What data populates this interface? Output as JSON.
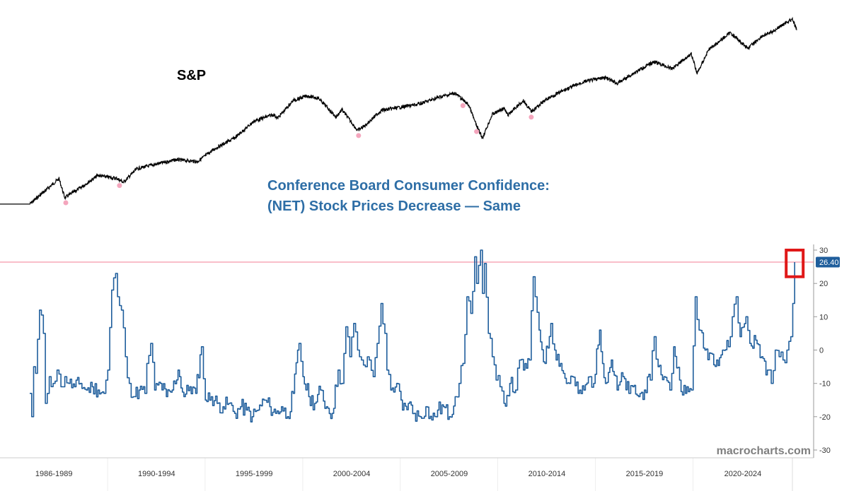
{
  "colors": {
    "sp_line": "#000000",
    "confidence_line": "#1f5e9c",
    "title": "#2e6ea6",
    "marker": "#f4a6bd",
    "reference_line": "#f7a8b8",
    "highlight_box": "#e01818",
    "badge": "#1f5e9c"
  },
  "chart_data": [
    {
      "type": "line",
      "label": "S&P",
      "log_scale": true,
      "series": [
        {
          "name": "S&P",
          "points": [
            [
              1986.0,
              200
            ],
            [
              1987.5,
              320
            ],
            [
              1987.8,
              225
            ],
            [
              1988.5,
              265
            ],
            [
              1989.5,
              340
            ],
            [
              1990.5,
              320
            ],
            [
              1990.8,
              300
            ],
            [
              1991.5,
              385
            ],
            [
              1992.5,
              420
            ],
            [
              1993.5,
              455
            ],
            [
              1994.6,
              440
            ],
            [
              1995.5,
              560
            ],
            [
              1996.5,
              680
            ],
            [
              1997.5,
              930
            ],
            [
              1998.5,
              1050
            ],
            [
              1998.7,
              980
            ],
            [
              1999.5,
              1360
            ],
            [
              2000.2,
              1480
            ],
            [
              2000.8,
              1420
            ],
            [
              2001.7,
              1000
            ],
            [
              2002.0,
              1150
            ],
            [
              2002.8,
              780
            ],
            [
              2003.2,
              860
            ],
            [
              2004.0,
              1130
            ],
            [
              2005.0,
              1200
            ],
            [
              2006.0,
              1280
            ],
            [
              2007.0,
              1450
            ],
            [
              2007.8,
              1560
            ],
            [
              2008.5,
              1250
            ],
            [
              2008.9,
              850
            ],
            [
              2009.2,
              680
            ],
            [
              2009.7,
              1050
            ],
            [
              2010.3,
              1180
            ],
            [
              2010.5,
              1040
            ],
            [
              2011.3,
              1360
            ],
            [
              2011.7,
              1110
            ],
            [
              2012.5,
              1400
            ],
            [
              2013.5,
              1680
            ],
            [
              2014.5,
              1950
            ],
            [
              2015.5,
              2080
            ],
            [
              2016.1,
              1860
            ],
            [
              2017.0,
              2280
            ],
            [
              2018.0,
              2790
            ],
            [
              2018.9,
              2450
            ],
            [
              2019.9,
              3230
            ],
            [
              2020.2,
              2240
            ],
            [
              2020.8,
              3500
            ],
            [
              2021.9,
              4770
            ],
            [
              2022.8,
              3580
            ],
            [
              2023.5,
              4450
            ],
            [
              2024.0,
              4800
            ],
            [
              2024.9,
              5950
            ],
            [
              2025.1,
              6050
            ],
            [
              2025.3,
              5000
            ]
          ]
        }
      ],
      "markers": [
        1987.85,
        1990.6,
        2002.85,
        2008.2,
        2008.9,
        2011.7
      ]
    },
    {
      "type": "line",
      "title_lines": [
        "Conference Board Consumer Confidence:",
        "(NET) Stock Prices Decrease — Same"
      ],
      "y_ticks": [
        30,
        20,
        10,
        0,
        -10,
        -20,
        -30
      ],
      "ylim": [
        -30,
        30
      ],
      "x_tick_labels": [
        "1986-1989",
        "1990-1994",
        "1995-1999",
        "2000-2004",
        "2005-2009",
        "2010-2014",
        "2015-2019",
        "2020-2024"
      ],
      "x_bands": [
        [
          1986,
          1990
        ],
        [
          1990,
          1995
        ],
        [
          1995,
          2000
        ],
        [
          2000,
          2005
        ],
        [
          2005,
          2010
        ],
        [
          2010,
          2015
        ],
        [
          2015,
          2020
        ],
        [
          2020,
          2025
        ]
      ],
      "reference_value": 26.4,
      "last_value_label": "26.40",
      "series": [
        {
          "name": "Conference Board Consumer Confidence: (NET) Stock Prices Decrease — Same",
          "points": [
            [
              1986.0,
              -13
            ],
            [
              1986.1,
              -20
            ],
            [
              1986.2,
              -5
            ],
            [
              1986.3,
              -7
            ],
            [
              1986.5,
              12
            ],
            [
              1986.7,
              5
            ],
            [
              1986.8,
              -16
            ],
            [
              1987.0,
              -8
            ],
            [
              1987.2,
              -10
            ],
            [
              1987.4,
              -6
            ],
            [
              1987.6,
              -11
            ],
            [
              1987.8,
              -8
            ],
            [
              1988.0,
              -10
            ],
            [
              1988.3,
              -11
            ],
            [
              1988.6,
              -10
            ],
            [
              1988.9,
              -12
            ],
            [
              1989.2,
              -11
            ],
            [
              1989.5,
              -12
            ],
            [
              1989.8,
              -13
            ],
            [
              1990.0,
              -6
            ],
            [
              1990.2,
              18
            ],
            [
              1990.4,
              23
            ],
            [
              1990.5,
              16
            ],
            [
              1990.7,
              12
            ],
            [
              1990.9,
              -2
            ],
            [
              1991.1,
              -10
            ],
            [
              1991.3,
              -14
            ],
            [
              1991.6,
              -12
            ],
            [
              1991.9,
              -13
            ],
            [
              1992.0,
              -4
            ],
            [
              1992.2,
              2
            ],
            [
              1992.4,
              -12
            ],
            [
              1992.7,
              -10
            ],
            [
              1993.0,
              -14
            ],
            [
              1993.3,
              -12
            ],
            [
              1993.6,
              -6
            ],
            [
              1993.9,
              -14
            ],
            [
              1994.2,
              -11
            ],
            [
              1994.5,
              -13
            ],
            [
              1994.8,
              1
            ],
            [
              1995.0,
              -15
            ],
            [
              1995.3,
              -14
            ],
            [
              1995.6,
              -16
            ],
            [
              1995.9,
              -17
            ],
            [
              1996.2,
              -16
            ],
            [
              1996.5,
              -19
            ],
            [
              1996.8,
              -17
            ],
            [
              1997.1,
              -18
            ],
            [
              1997.4,
              -20
            ],
            [
              1997.7,
              -18
            ],
            [
              1998.0,
              -15
            ],
            [
              1998.3,
              -17
            ],
            [
              1998.6,
              -19
            ],
            [
              1998.9,
              -17
            ],
            [
              1999.2,
              -20
            ],
            [
              1999.5,
              -13
            ],
            [
              1999.8,
              2
            ],
            [
              2000.0,
              -8
            ],
            [
              2000.3,
              -14
            ],
            [
              2000.6,
              -16
            ],
            [
              2000.9,
              -12
            ],
            [
              2001.2,
              -17
            ],
            [
              2001.5,
              -19
            ],
            [
              2001.8,
              -6
            ],
            [
              2002.0,
              -10
            ],
            [
              2002.2,
              7
            ],
            [
              2002.4,
              -2
            ],
            [
              2002.6,
              8
            ],
            [
              2002.8,
              0
            ],
            [
              2003.0,
              -3
            ],
            [
              2003.2,
              -5
            ],
            [
              2003.4,
              -3
            ],
            [
              2003.6,
              -8
            ],
            [
              2003.8,
              2
            ],
            [
              2004.0,
              14
            ],
            [
              2004.2,
              5
            ],
            [
              2004.3,
              -6
            ],
            [
              2004.5,
              -12
            ],
            [
              2004.8,
              -10
            ],
            [
              2005.1,
              -18
            ],
            [
              2005.4,
              -16
            ],
            [
              2005.7,
              -19
            ],
            [
              2006.0,
              -20
            ],
            [
              2006.3,
              -17
            ],
            [
              2006.6,
              -21
            ],
            [
              2006.9,
              -18
            ],
            [
              2007.2,
              -17
            ],
            [
              2007.5,
              -20
            ],
            [
              2007.8,
              -14
            ],
            [
              2008.0,
              -10
            ],
            [
              2008.2,
              -4
            ],
            [
              2008.4,
              16
            ],
            [
              2008.6,
              11
            ],
            [
              2008.8,
              28
            ],
            [
              2008.9,
              20
            ],
            [
              2009.1,
              30
            ],
            [
              2009.2,
              17
            ],
            [
              2009.3,
              26
            ],
            [
              2009.5,
              5
            ],
            [
              2009.7,
              -2
            ],
            [
              2009.9,
              -9
            ],
            [
              2010.1,
              -11
            ],
            [
              2010.3,
              -16
            ],
            [
              2010.6,
              -10
            ],
            [
              2010.9,
              -12
            ],
            [
              2011.1,
              -3
            ],
            [
              2011.3,
              -6
            ],
            [
              2011.6,
              -3
            ],
            [
              2011.8,
              22
            ],
            [
              2011.9,
              16
            ],
            [
              2012.1,
              6
            ],
            [
              2012.4,
              -4
            ],
            [
              2012.7,
              8
            ],
            [
              2012.9,
              0
            ],
            [
              2013.2,
              -4
            ],
            [
              2013.5,
              -10
            ],
            [
              2013.8,
              -8
            ],
            [
              2014.1,
              -13
            ],
            [
              2014.4,
              -12
            ],
            [
              2014.7,
              -8
            ],
            [
              2014.9,
              -10
            ],
            [
              2015.2,
              6
            ],
            [
              2015.5,
              -10
            ],
            [
              2015.8,
              -3
            ],
            [
              2016.1,
              -12
            ],
            [
              2016.4,
              -8
            ],
            [
              2016.7,
              -13
            ],
            [
              2016.9,
              -11
            ],
            [
              2017.2,
              -14
            ],
            [
              2017.5,
              -12
            ],
            [
              2017.8,
              -9
            ],
            [
              2018.0,
              4
            ],
            [
              2018.2,
              -5
            ],
            [
              2018.5,
              -8
            ],
            [
              2018.8,
              -12
            ],
            [
              2019.0,
              1
            ],
            [
              2019.3,
              -9
            ],
            [
              2019.6,
              -13
            ],
            [
              2019.9,
              -12
            ],
            [
              2020.1,
              16
            ],
            [
              2020.3,
              6
            ],
            [
              2020.6,
              0
            ],
            [
              2020.9,
              -1
            ],
            [
              2021.2,
              -3
            ],
            [
              2021.5,
              0
            ],
            [
              2021.8,
              1
            ],
            [
              2022.0,
              10
            ],
            [
              2022.2,
              16
            ],
            [
              2022.4,
              4
            ],
            [
              2022.7,
              10
            ],
            [
              2022.9,
              2
            ],
            [
              2023.2,
              3
            ],
            [
              2023.5,
              -2
            ],
            [
              2023.8,
              -6
            ],
            [
              2024.0,
              -10
            ],
            [
              2024.2,
              0
            ],
            [
              2024.4,
              -2
            ],
            [
              2024.6,
              -3
            ],
            [
              2024.8,
              0
            ],
            [
              2025.0,
              4
            ],
            [
              2025.1,
              14
            ],
            [
              2025.2,
              26.4
            ]
          ]
        }
      ]
    }
  ],
  "watermark": "macrocharts.com"
}
